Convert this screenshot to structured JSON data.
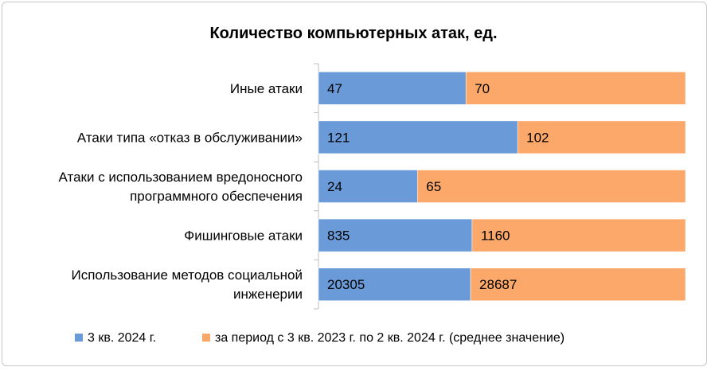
{
  "chart_data": {
    "type": "bar",
    "orientation": "horizontal",
    "stacking": "percent",
    "title": "Количество компьютерных атак, ед.",
    "categories": [
      [
        "Иные атаки"
      ],
      [
        "Атаки типа «отказ в обслуживании»"
      ],
      [
        "Атаки с использованием вредоносного",
        "программного обеспечения"
      ],
      [
        "Фишинговые атаки"
      ],
      [
        "Использование методов социальной",
        "инженерии"
      ]
    ],
    "series": [
      {
        "name": "3 кв. 2024 г.",
        "color": "#6a9bd8",
        "values": [
          47,
          121,
          24,
          835,
          20305
        ],
        "labels": [
          "47",
          "121",
          "24",
          "835",
          "20305"
        ]
      },
      {
        "name": "за период с 3 кв. 2023 г. по 2 кв. 2024 г. (среднее значение)",
        "color": "#fba86a",
        "values": [
          70,
          102,
          65,
          1160,
          28687
        ],
        "labels": [
          "70",
          "102",
          "65",
          "1160",
          "28687"
        ]
      }
    ],
    "xlabel": "",
    "ylabel": "",
    "grid": false,
    "legend": "bottom"
  }
}
